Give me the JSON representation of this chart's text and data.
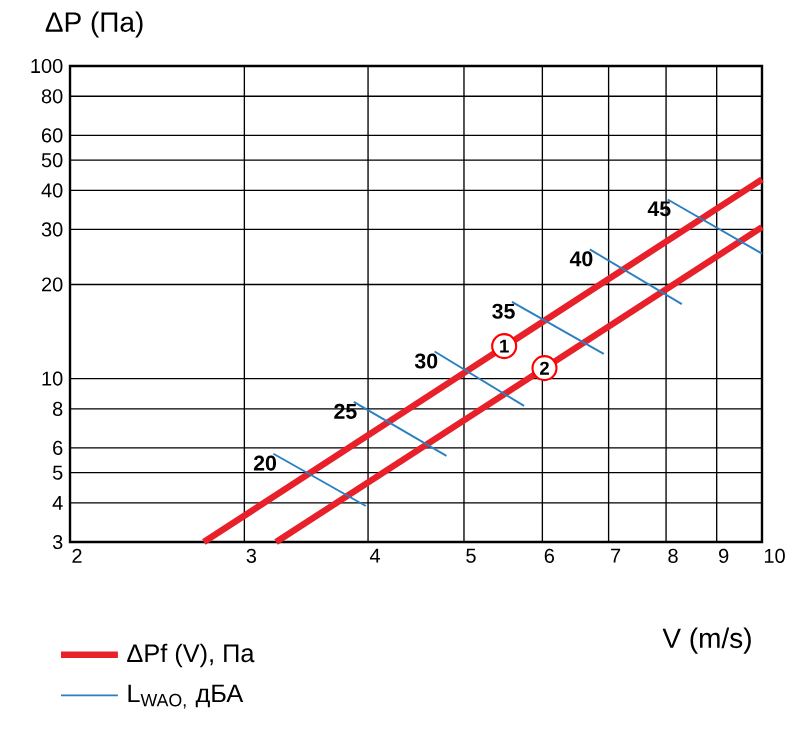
{
  "chart_data": {
    "type": "line",
    "xlabel": "V (m/s)",
    "ylabel": "ΔP (Па)",
    "log": "xy",
    "grid": true,
    "legend": "bottom",
    "xlim": [
      2,
      10
    ],
    "ylim": [
      3,
      100
    ],
    "xticks": [
      2,
      3,
      4,
      5,
      6,
      7,
      8,
      9,
      10
    ],
    "yticks": [
      3,
      4,
      5,
      6,
      8,
      10,
      20,
      30,
      40,
      50,
      60,
      80,
      100
    ],
    "series": [
      {
        "name": "ΔPf (V), Па",
        "color": "#e8202a",
        "x": [
          2.73,
          10
        ],
        "values": [
          3,
          43.4
        ]
      },
      {
        "color": "#e8202a",
        "x": [
          3.23,
          10
        ],
        "values": [
          3,
          30.5
        ]
      },
      {
        "name": "L$_{WAO,}$ дБА",
        "color": "#2a7fc1",
        "x": [
          3.21,
          3.98
        ],
        "values": [
          5.75,
          3.91
        ]
      },
      {
        "color": "#2a7fc1",
        "x": [
          3.87,
          4.8
        ],
        "values": [
          8.42,
          5.66
        ]
      },
      {
        "color": "#2a7fc1",
        "x": [
          4.67,
          5.75
        ],
        "values": [
          12.2,
          8.18
        ]
      },
      {
        "color": "#2a7fc1",
        "x": [
          5.59,
          6.92
        ],
        "values": [
          17.6,
          12.0
        ]
      },
      {
        "color": "#2a7fc1",
        "x": [
          6.7,
          8.3
        ],
        "values": [
          25.9,
          17.3
        ]
      },
      {
        "color": "#2a7fc1",
        "x": [
          8.03,
          10
        ],
        "values": [
          37.4,
          25.1
        ]
      }
    ],
    "annotations": [
      {
        "text": "1",
        "x": 5.49,
        "y": 12.7
      },
      {
        "text": "2",
        "x": 6.03,
        "y": 10.8
      },
      {
        "text": "20",
        "x": 3.21,
        "y": 5.75
      },
      {
        "text": "25",
        "x": 3.87,
        "y": 8.42
      },
      {
        "text": "30",
        "x": 4.67,
        "y": 12.2
      },
      {
        "text": "35",
        "x": 5.59,
        "y": 17.6
      },
      {
        "text": "40",
        "x": 6.7,
        "y": 25.9
      },
      {
        "text": "45",
        "x": 8.03,
        "y": 37.4
      }
    ]
  }
}
